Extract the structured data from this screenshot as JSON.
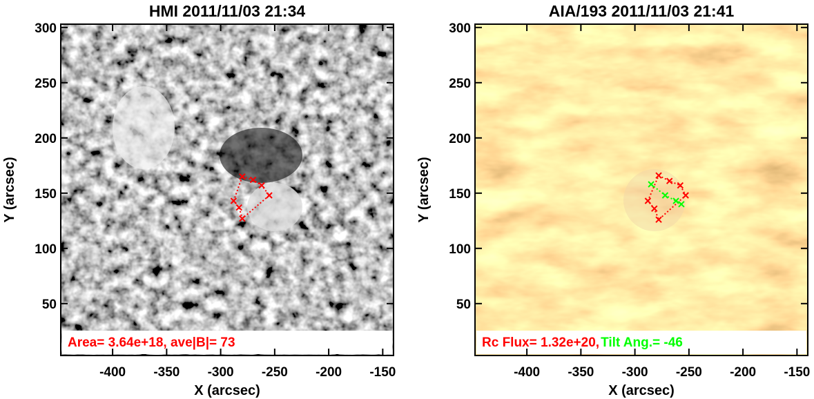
{
  "chart_data": [
    {
      "type": "image",
      "title": "HMI 2011/11/03 21:34",
      "xlabel": "X (arcsec)",
      "ylabel": "Y (arcsec)",
      "xlim": [
        -448,
        -140
      ],
      "ylim": [
        3,
        303
      ],
      "xticks": [
        -400,
        -350,
        -300,
        -250,
        -200,
        -150
      ],
      "yticks": [
        50,
        100,
        150,
        200,
        250,
        300
      ],
      "colormap": "gray",
      "annotation": [
        {
          "text": "Area= 3.64e+18, ave|B|=  73",
          "color": "#ff0000"
        }
      ],
      "overlays": [
        {
          "color": "#ff0000",
          "x": [
            -280,
            -270,
            -262,
            -255,
            -280,
            -283,
            -288
          ],
          "y": [
            165,
            162,
            157,
            148,
            127,
            137,
            143
          ]
        }
      ]
    },
    {
      "type": "image",
      "title": "AIA/193 2011/11/03 21:41",
      "xlabel": "X (arcsec)",
      "ylabel": "Y (arcsec)",
      "xlim": [
        -448,
        -140
      ],
      "ylim": [
        3,
        303
      ],
      "xticks": [
        -400,
        -350,
        -300,
        -250,
        -200,
        -150
      ],
      "yticks": [
        50,
        100,
        150,
        200,
        250,
        300
      ],
      "colormap": "aia193",
      "annotation": [
        {
          "text": "Rc Flux= 1.32e+20,",
          "color": "#ff0000"
        },
        {
          "text": "Tilt Ang.= -46",
          "color": "#00ff00"
        }
      ],
      "overlays": [
        {
          "color": "#ff0000",
          "x": [
            -278,
            -268,
            -258,
            -253,
            -278,
            -282,
            -288
          ],
          "y": [
            166,
            161,
            157,
            148,
            126,
            136,
            143
          ]
        },
        {
          "color": "#00ff00",
          "x": [
            -285,
            -272,
            -262,
            -257
          ],
          "y": [
            158,
            148,
            143,
            140
          ]
        }
      ]
    }
  ]
}
